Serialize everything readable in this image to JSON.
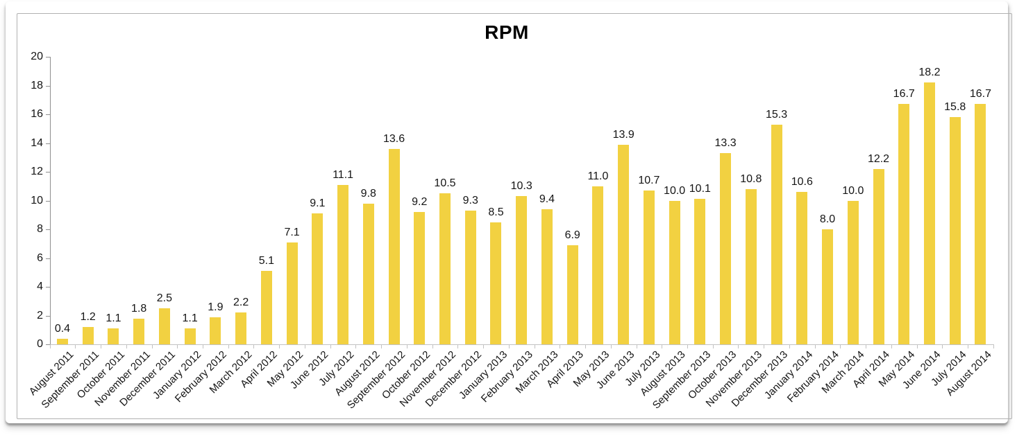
{
  "chart_data": {
    "type": "bar",
    "title": "RPM",
    "categories": [
      "August 2011",
      "September 2011",
      "October 2011",
      "November 2011",
      "December 2011",
      "January 2012",
      "February 2012",
      "March 2012",
      "April 2012",
      "May 2012",
      "June 2012",
      "July 2012",
      "August 2012",
      "September 2012",
      "October 2012",
      "November 2012",
      "December 2012",
      "January 2013",
      "February 2013",
      "March 2013",
      "April 2013",
      "May 2013",
      "June 2013",
      "July 2013",
      "August 2013",
      "September 2013",
      "October 2013",
      "November 2013",
      "December 2013",
      "January 2014",
      "February 2014",
      "March 2014",
      "April 2014",
      "May 2014",
      "June 2014",
      "July 2014",
      "August 2014"
    ],
    "values": [
      0.4,
      1.2,
      1.1,
      1.8,
      2.5,
      1.1,
      1.9,
      2.2,
      5.1,
      7.1,
      9.1,
      11.1,
      9.8,
      13.6,
      9.2,
      10.5,
      9.3,
      8.5,
      10.3,
      9.4,
      6.9,
      11.0,
      13.9,
      10.7,
      10.0,
      10.1,
      13.3,
      10.8,
      15.3,
      10.6,
      8.0,
      10.0,
      12.2,
      16.7,
      18.2,
      15.8,
      16.7
    ],
    "value_label_decimals": 1,
    "xlabel": "",
    "ylabel": "",
    "ylim": [
      0,
      20
    ],
    "ytick_step": 2,
    "grid": "off",
    "legend": "none",
    "colors": {
      "bar": "#F2D141",
      "title_text": "#000000",
      "axis_text": "#141414",
      "y_axis_line": "#8f8f8f",
      "x_axis_line": "#c2c2c2",
      "frame_border": "#b0b0b0"
    }
  }
}
